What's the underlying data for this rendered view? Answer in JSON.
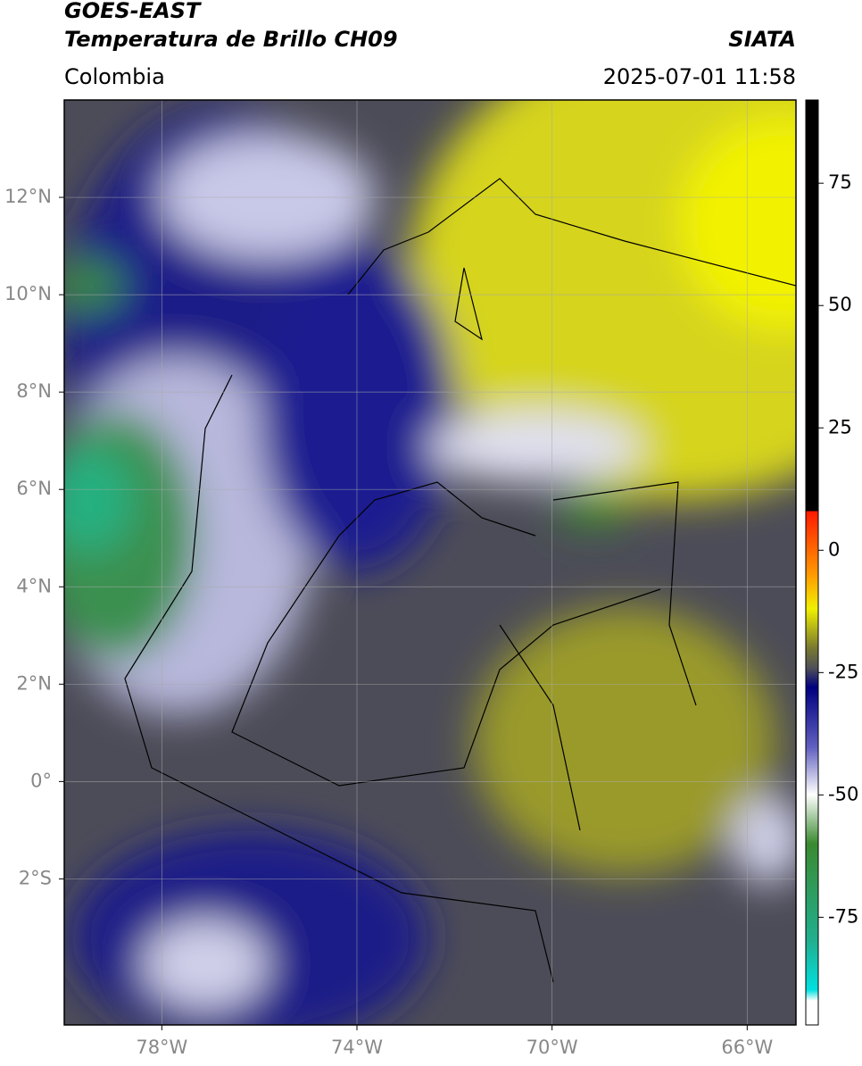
{
  "header": {
    "title": "GOES-EAST",
    "subtitle": "Temperatura de Brillo CH09",
    "source": "SIATA",
    "region": "Colombia",
    "datetime": "2025-07-01 11:58"
  },
  "map": {
    "xlim": [
      -80,
      -65
    ],
    "ylim": [
      -5,
      14
    ],
    "grid": true,
    "xticks": [
      {
        "value": -78,
        "label": "78°W"
      },
      {
        "value": -74,
        "label": "74°W"
      },
      {
        "value": -70,
        "label": "70°W"
      },
      {
        "value": -66,
        "label": "66°W"
      }
    ],
    "yticks": [
      {
        "value": 12,
        "label": "12°N"
      },
      {
        "value": 10,
        "label": "10°N"
      },
      {
        "value": 8,
        "label": "8°N"
      },
      {
        "value": 6,
        "label": "6°N"
      },
      {
        "value": 4,
        "label": "4°N"
      },
      {
        "value": 2,
        "label": "2°N"
      },
      {
        "value": 0,
        "label": "0°"
      },
      {
        "value": -2,
        "label": "2°S"
      }
    ]
  },
  "colorbar": {
    "ylim": [
      -97,
      92
    ],
    "yticks": [
      75,
      50,
      25,
      0,
      -25,
      -50,
      -75
    ]
  }
}
